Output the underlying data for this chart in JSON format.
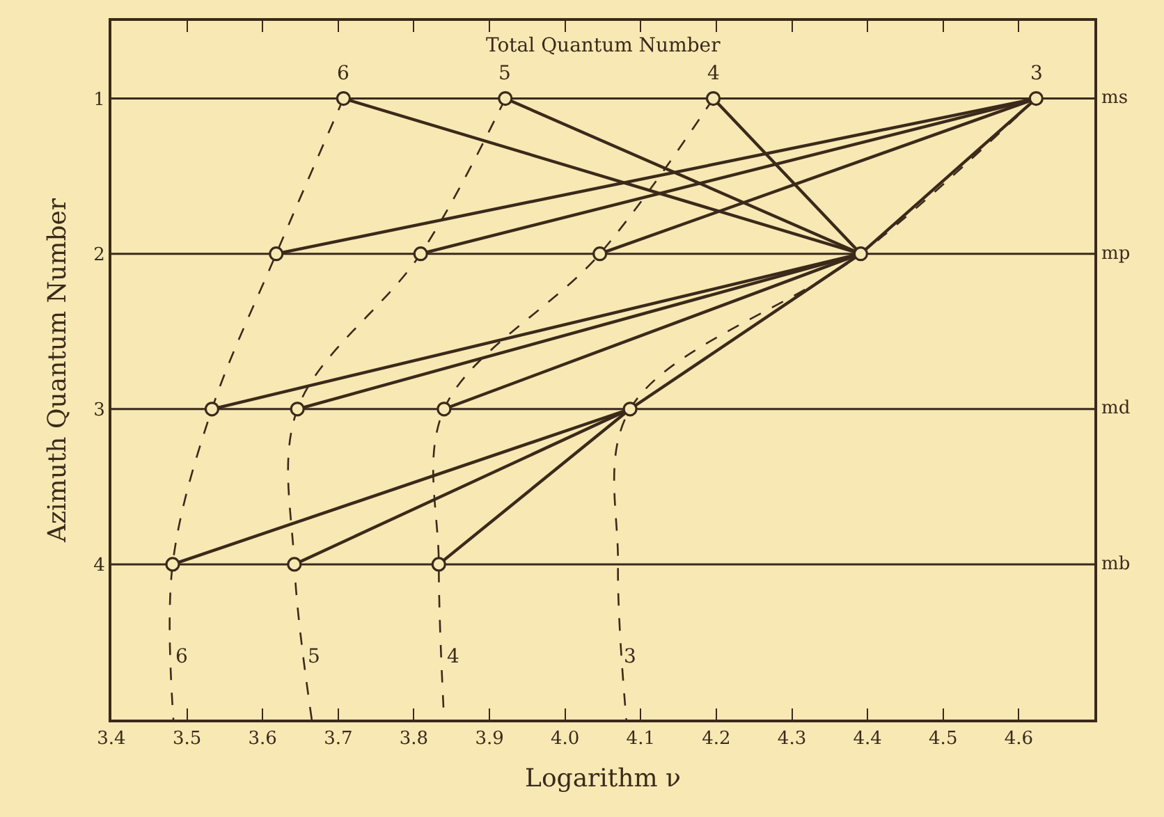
{
  "chart_data": {
    "type": "line",
    "xlabel": "Logarithm ν",
    "ylabel": "Azimuth Quantum Number",
    "xlim": [
      3.4,
      4.7
    ],
    "xticks": [
      3.4,
      3.5,
      3.6,
      3.7,
      3.8,
      3.9,
      {
        "value": 4.0,
        "label": "4.0"
      },
      4.1,
      4.2,
      4.3,
      4.4,
      4.5,
      4.6
    ],
    "ylim": [
      5.0,
      0.5
    ],
    "yticks": [
      1,
      2,
      3,
      4
    ],
    "ref_lines": [
      {
        "axis": "y",
        "value": 1,
        "label": "ms"
      },
      {
        "axis": "y",
        "value": 2,
        "label": "mp"
      },
      {
        "axis": "y",
        "value": 3,
        "label": "md"
      },
      {
        "axis": "y",
        "value": 4,
        "label": "mb"
      }
    ],
    "series": [
      {
        "line_style": "dashed",
        "color": "#3b2a1a",
        "x": [
          3.707,
          3.618,
          3.533,
          3.481,
          3.482
        ],
        "values": [
          1,
          2,
          3,
          4,
          5.0
        ]
      },
      {
        "line_style": "dashed",
        "color": "#3b2a1a",
        "x": [
          3.921,
          3.809,
          3.646,
          3.642,
          3.665
        ],
        "values": [
          1,
          2,
          3,
          4,
          5.0
        ]
      },
      {
        "line_style": "dashed",
        "color": "#3b2a1a",
        "x": [
          4.196,
          4.046,
          3.84,
          3.833,
          3.84
        ],
        "values": [
          1,
          2,
          3,
          4,
          5.0
        ]
      },
      {
        "line_style": "dashed",
        "color": "#3b2a1a",
        "x": [
          4.623,
          4.391,
          4.086,
          4.07,
          4.081
        ],
        "values": [
          1,
          2,
          3,
          4,
          5.0
        ]
      },
      {
        "line_style": "solid",
        "color": "#3b2a1a",
        "x": [
          4.623,
          3.618
        ],
        "values": [
          1,
          2
        ]
      },
      {
        "line_style": "solid",
        "color": "#3b2a1a",
        "x": [
          4.623,
          3.809
        ],
        "values": [
          1,
          2
        ]
      },
      {
        "line_style": "solid",
        "color": "#3b2a1a",
        "x": [
          4.623,
          4.046
        ],
        "values": [
          1,
          2
        ]
      },
      {
        "line_style": "solid",
        "color": "#3b2a1a",
        "x": [
          4.623,
          4.391
        ],
        "values": [
          1,
          2
        ]
      },
      {
        "line_style": "solid",
        "color": "#3b2a1a",
        "x": [
          4.391,
          3.707
        ],
        "values": [
          2,
          1
        ]
      },
      {
        "line_style": "solid",
        "color": "#3b2a1a",
        "x": [
          4.391,
          3.921
        ],
        "values": [
          2,
          1
        ]
      },
      {
        "line_style": "solid",
        "color": "#3b2a1a",
        "x": [
          4.391,
          4.196
        ],
        "values": [
          2,
          1
        ]
      },
      {
        "line_style": "solid",
        "color": "#3b2a1a",
        "x": [
          4.391,
          3.533
        ],
        "values": [
          2,
          3
        ]
      },
      {
        "line_style": "solid",
        "color": "#3b2a1a",
        "x": [
          4.391,
          3.646
        ],
        "values": [
          2,
          3
        ]
      },
      {
        "line_style": "solid",
        "color": "#3b2a1a",
        "x": [
          4.391,
          3.84
        ],
        "values": [
          2,
          3
        ]
      },
      {
        "line_style": "solid",
        "color": "#3b2a1a",
        "x": [
          4.391,
          4.086
        ],
        "values": [
          2,
          3
        ]
      },
      {
        "line_style": "solid",
        "color": "#3b2a1a",
        "x": [
          4.086,
          3.481
        ],
        "values": [
          3,
          4
        ]
      },
      {
        "line_style": "solid",
        "color": "#3b2a1a",
        "x": [
          4.086,
          3.642
        ],
        "values": [
          3,
          4
        ]
      },
      {
        "line_style": "solid",
        "color": "#3b2a1a",
        "x": [
          4.086,
          3.833
        ],
        "values": [
          3,
          4
        ]
      },
      {
        "type": "scatter",
        "marker": "circle",
        "color": "#3b2a1a",
        "x": [
          3.707,
          3.921,
          4.196,
          4.623,
          3.618,
          3.809,
          4.046,
          4.391,
          3.533,
          3.646,
          3.84,
          4.086,
          3.481,
          3.642,
          3.833
        ],
        "values": [
          1,
          1,
          1,
          1,
          2,
          2,
          2,
          2,
          3,
          3,
          3,
          3,
          4,
          4,
          4
        ]
      }
    ],
    "annotations": [
      "Total Quantum Number",
      {
        "text": "6",
        "x": 3.707,
        "y": 1
      },
      {
        "text": "5",
        "x": 3.921,
        "y": 1
      },
      {
        "text": "4",
        "x": 4.196,
        "y": 1
      },
      {
        "text": "3",
        "x": 4.623,
        "y": 1
      },
      {
        "text": "6",
        "x": 3.48,
        "y": 4.6
      },
      {
        "text": "5",
        "x": 3.655,
        "y": 4.6
      },
      {
        "text": "4",
        "x": 3.838,
        "y": 4.6
      },
      {
        "text": "3",
        "x": 4.073,
        "y": 4.6
      }
    ]
  }
}
